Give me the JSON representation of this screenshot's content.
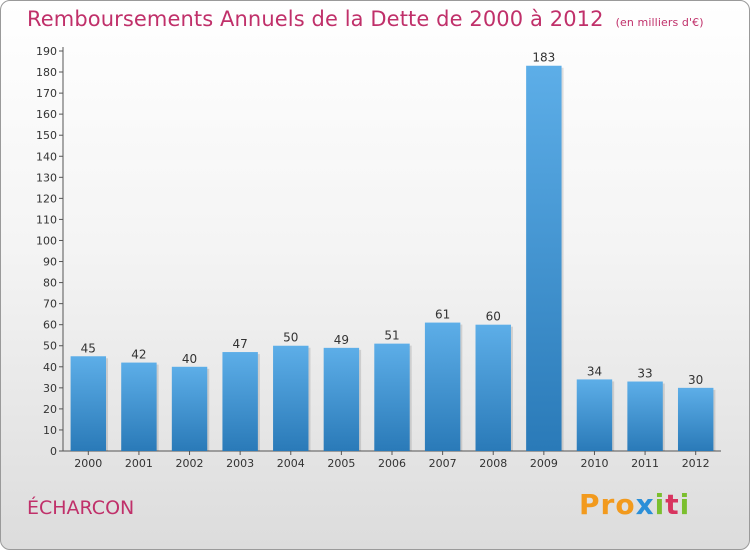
{
  "chart_data": {
    "type": "bar",
    "title": "Remboursements Annuels de la Dette de 2000 à 2012",
    "unit": "(en milliers d'€)",
    "categories": [
      "2000",
      "2001",
      "2002",
      "2003",
      "2004",
      "2005",
      "2006",
      "2007",
      "2008",
      "2009",
      "2010",
      "2011",
      "2012"
    ],
    "values": [
      45,
      42,
      40,
      47,
      50,
      49,
      51,
      61,
      60,
      183,
      34,
      33,
      30
    ],
    "ylim": [
      0,
      190
    ],
    "yticks": [
      0,
      10,
      20,
      30,
      40,
      50,
      60,
      70,
      80,
      90,
      100,
      110,
      120,
      130,
      140,
      150,
      160,
      170,
      180,
      190
    ],
    "grid": false,
    "colors": {
      "bar_light": "#5daee8",
      "bar_dark": "#2a7ab8",
      "title": "#c0306a"
    }
  },
  "commune": "ÉCHARCON",
  "logo": {
    "text": "Proxiti",
    "letters": [
      "P",
      "r",
      "o",
      "x",
      "i",
      "t",
      "i"
    ]
  }
}
